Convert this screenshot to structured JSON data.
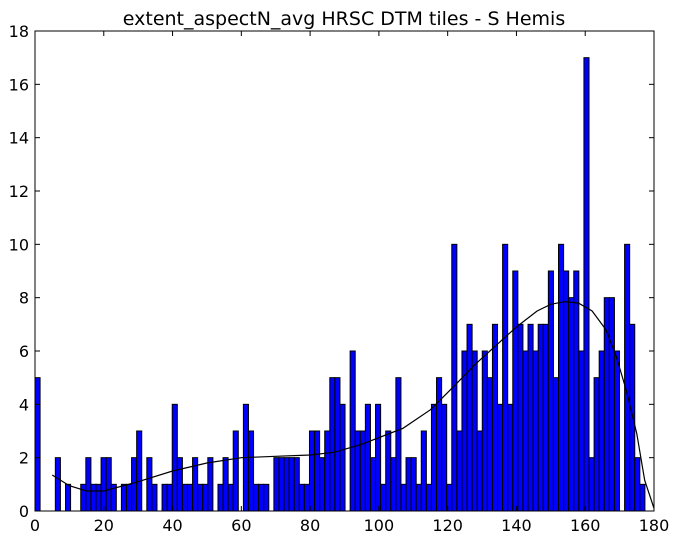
{
  "chart_data": {
    "type": "bar",
    "title": "extent_aspectN_avg HRSC DTM tiles - S Hemis",
    "xlabel": "",
    "ylabel": "",
    "xlim": [
      0,
      180
    ],
    "ylim": [
      0,
      18
    ],
    "xticks": [
      0,
      20,
      40,
      60,
      80,
      100,
      120,
      140,
      160,
      180
    ],
    "yticks": [
      0,
      2,
      4,
      6,
      8,
      10,
      12,
      14,
      16,
      18
    ],
    "grid": false,
    "bar_color": "#0000ff",
    "bin_start": 0,
    "bin_width": 1.478,
    "counts": [
      5,
      0,
      0,
      0,
      2,
      0,
      1,
      0,
      0,
      1,
      2,
      1,
      1,
      2,
      2,
      1,
      0,
      1,
      1,
      2,
      3,
      0,
      2,
      1,
      0,
      1,
      1,
      4,
      2,
      1,
      1,
      2,
      1,
      1,
      2,
      0,
      1,
      2,
      1,
      3,
      0,
      4,
      3,
      1,
      1,
      1,
      0,
      2,
      2,
      2,
      2,
      2,
      1,
      1,
      3,
      3,
      2,
      3,
      5,
      5,
      4,
      0,
      6,
      3,
      3,
      4,
      2,
      4,
      1,
      3,
      2,
      5,
      1,
      2,
      2,
      1,
      3,
      1,
      4,
      5,
      4,
      1,
      10,
      3,
      6,
      7,
      6,
      3,
      6,
      5,
      7,
      4,
      10,
      4,
      9,
      7,
      6,
      7,
      6,
      7,
      7,
      9,
      5,
      10,
      9,
      8,
      9,
      6,
      17,
      2,
      5,
      6,
      8,
      8,
      6,
      0,
      10,
      7,
      2,
      1
    ],
    "fit_curve": {
      "color": "#000000",
      "x": [
        5,
        10,
        15,
        20,
        30,
        40,
        50,
        60,
        70,
        80,
        87,
        95,
        107,
        115,
        122,
        128,
        134,
        140,
        146,
        150,
        154,
        158,
        162,
        166,
        169,
        172,
        175,
        177.3,
        180
      ],
      "y": [
        1.35,
        0.95,
        0.75,
        0.75,
        1.1,
        1.5,
        1.8,
        2.0,
        2.05,
        2.1,
        2.2,
        2.5,
        3.1,
        3.8,
        4.7,
        5.5,
        6.2,
        6.9,
        7.5,
        7.75,
        7.85,
        7.8,
        7.5,
        6.8,
        5.8,
        4.5,
        2.9,
        1.15,
        0.1
      ]
    }
  }
}
